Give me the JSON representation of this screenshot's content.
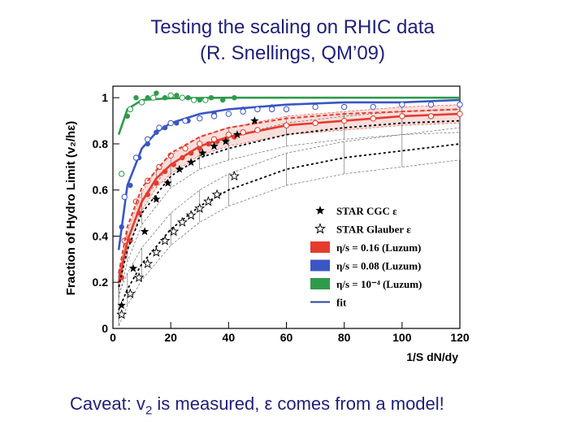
{
  "slide": {
    "title_line1": "Testing the scaling on RHIC data",
    "title_line2": "(R. Snellings, QM’09)",
    "caveat_pre": "Caveat: v",
    "caveat_sub": "2",
    "caveat_post": " is measured, ε comes from a model!"
  },
  "chart_data": {
    "type": "scatter",
    "xlabel": "1/S dN/dy",
    "ylabel": "Fraction of Hydro Limit (v₂/hε)",
    "xlim": [
      0,
      120
    ],
    "ylim": [
      0,
      1.05
    ],
    "xticks": [
      0,
      20,
      40,
      60,
      80,
      100,
      120
    ],
    "yticks": [
      0,
      0.2,
      0.4,
      0.6,
      0.8,
      1
    ],
    "grid": false,
    "legend_position": "right",
    "legend": [
      {
        "label": "STAR CGC ε",
        "marker": "star-filled",
        "color": "#000000"
      },
      {
        "label": "STAR Glauber ε",
        "marker": "star-open",
        "color": "#000000"
      },
      {
        "label": "η/s = 0.16 (Luzum)",
        "marker": "box",
        "color": "#e53b2e"
      },
      {
        "label": "η/s = 0.08 (Luzum)",
        "marker": "box",
        "color": "#3a56c4"
      },
      {
        "label": "η/s = 10⁻⁴ (Luzum)",
        "marker": "box",
        "color": "#2e9b4a"
      },
      {
        "label": "fit",
        "marker": "line",
        "color": "#2a3f9e"
      }
    ],
    "series": [
      {
        "color": "#2e9b4a",
        "style": "line",
        "x": [
          2,
          5,
          10,
          20,
          40,
          60,
          80,
          100,
          120
        ],
        "y": [
          0.84,
          0.95,
          0.99,
          0.998,
          1.0,
          1.0,
          1.0,
          1.0,
          1.0
        ]
      },
      {
        "color": "#2e9b4a",
        "style": "points-filled",
        "x": [
          5,
          8,
          12,
          15,
          18,
          22,
          26,
          30,
          34,
          38,
          42
        ],
        "y": [
          0.92,
          1.0,
          1.0,
          1.02,
          1.0,
          1.01,
          1.0,
          0.99,
          1.0,
          0.99,
          1.0
        ]
      },
      {
        "color": "#2e9b4a",
        "style": "points-open",
        "x": [
          3,
          6,
          10,
          14,
          20,
          24,
          28,
          32
        ],
        "y": [
          0.67,
          0.95,
          0.98,
          1.0,
          1.01,
          1.0,
          0.99,
          0.99
        ]
      },
      {
        "color": "#3a56c4",
        "style": "line",
        "x": [
          2,
          5,
          10,
          15,
          20,
          30,
          40,
          60,
          80,
          100,
          120
        ],
        "y": [
          0.34,
          0.62,
          0.78,
          0.85,
          0.89,
          0.93,
          0.95,
          0.97,
          0.98,
          0.98,
          0.99
        ]
      },
      {
        "color": "#3a56c4",
        "style": "points-filled",
        "x": [
          3,
          6,
          9,
          12,
          15,
          18,
          22,
          26,
          30,
          35,
          40,
          45,
          50,
          55
        ],
        "y": [
          0.44,
          0.62,
          0.74,
          0.8,
          0.85,
          0.87,
          0.89,
          0.9,
          0.91,
          0.93,
          0.93,
          0.95,
          0.95,
          0.96
        ]
      },
      {
        "color": "#3a56c4",
        "style": "points-open",
        "x": [
          4,
          8,
          12,
          16,
          20,
          25,
          30,
          35,
          40,
          45,
          50,
          55,
          60,
          70,
          80,
          90,
          100,
          110,
          120
        ],
        "y": [
          0.57,
          0.74,
          0.82,
          0.87,
          0.89,
          0.9,
          0.91,
          0.92,
          0.93,
          0.94,
          0.95,
          0.95,
          0.95,
          0.96,
          0.96,
          0.96,
          0.97,
          0.97,
          0.97
        ]
      },
      {
        "color": "#e53b2e",
        "style": "line",
        "x": [
          2,
          5,
          10,
          15,
          20,
          30,
          40,
          60,
          80,
          100,
          120
        ],
        "y": [
          0.2,
          0.38,
          0.55,
          0.65,
          0.71,
          0.79,
          0.83,
          0.88,
          0.9,
          0.92,
          0.93
        ]
      },
      {
        "color": "#e53b2e",
        "style": "points-filled",
        "x": [
          3,
          6,
          9,
          12,
          15,
          18,
          21,
          24,
          27,
          30,
          33,
          36,
          39,
          42,
          45
        ],
        "y": [
          0.22,
          0.38,
          0.5,
          0.58,
          0.63,
          0.68,
          0.71,
          0.74,
          0.76,
          0.78,
          0.8,
          0.81,
          0.82,
          0.83,
          0.85
        ]
      },
      {
        "color": "#e53b2e",
        "style": "points-open",
        "x": [
          4,
          8,
          12,
          16,
          20,
          25,
          30,
          35,
          40,
          45,
          50,
          60,
          70,
          80,
          90,
          100,
          110,
          120
        ],
        "y": [
          0.38,
          0.55,
          0.64,
          0.7,
          0.75,
          0.78,
          0.8,
          0.82,
          0.84,
          0.85,
          0.86,
          0.88,
          0.89,
          0.9,
          0.91,
          0.92,
          0.92,
          0.93
        ]
      },
      {
        "color": "#e53b2e",
        "style": "dashed",
        "x": [
          2,
          5,
          10,
          20,
          30,
          40,
          60,
          80,
          100,
          120
        ],
        "y": [
          0.24,
          0.44,
          0.61,
          0.76,
          0.83,
          0.87,
          0.91,
          0.93,
          0.94,
          0.95
        ]
      },
      {
        "color": "#000000",
        "style": "dotted",
        "x": [
          2,
          5,
          10,
          20,
          30,
          40,
          60,
          80,
          100,
          120
        ],
        "y": [
          0.18,
          0.34,
          0.5,
          0.66,
          0.74,
          0.78,
          0.84,
          0.87,
          0.89,
          0.9
        ]
      },
      {
        "color": "#000000",
        "style": "dotted",
        "x": [
          2,
          5,
          10,
          20,
          30,
          40,
          60,
          80,
          100,
          120
        ],
        "y": [
          0.08,
          0.17,
          0.28,
          0.43,
          0.53,
          0.6,
          0.69,
          0.74,
          0.77,
          0.8
        ]
      },
      {
        "color": "#000000",
        "style": "stars-filled",
        "x": [
          3,
          7,
          11,
          15,
          19,
          23,
          27,
          31,
          35,
          39,
          43,
          49
        ],
        "y": [
          0.1,
          0.26,
          0.42,
          0.56,
          0.63,
          0.69,
          0.72,
          0.76,
          0.79,
          0.81,
          0.84,
          0.9
        ]
      },
      {
        "color": "#000000",
        "style": "stars-open",
        "x": [
          3,
          6,
          9,
          12,
          15,
          18,
          21,
          24,
          27,
          30,
          33,
          36,
          42
        ],
        "y": [
          0.06,
          0.15,
          0.22,
          0.28,
          0.33,
          0.38,
          0.42,
          0.46,
          0.49,
          0.52,
          0.55,
          0.58,
          0.66
        ]
      }
    ]
  }
}
